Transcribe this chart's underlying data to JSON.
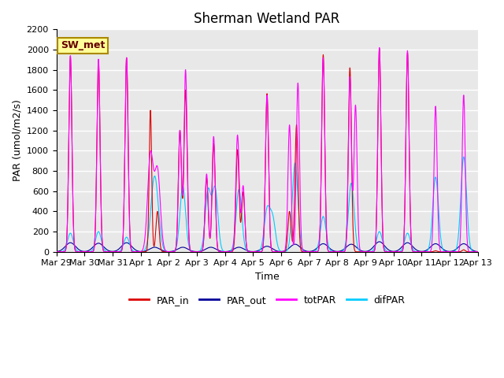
{
  "title": "Sherman Wetland PAR",
  "ylabel": "PAR (umol/m2/s)",
  "xlabel": "Time",
  "annotation": "SW_met",
  "ylim": [
    0,
    2200
  ],
  "yticks": [
    0,
    200,
    400,
    600,
    800,
    1000,
    1200,
    1400,
    1600,
    1800,
    2000,
    2200
  ],
  "line_colors": {
    "PAR_in": "#dd0000",
    "PAR_out": "#000099",
    "totPAR": "#ff00ff",
    "difPAR": "#00ccff"
  },
  "bg_color": "#e8e8e8",
  "grid_color": "white",
  "title_fontsize": 12,
  "axis_fontsize": 9,
  "tick_fontsize": 8,
  "n_days": 15
}
